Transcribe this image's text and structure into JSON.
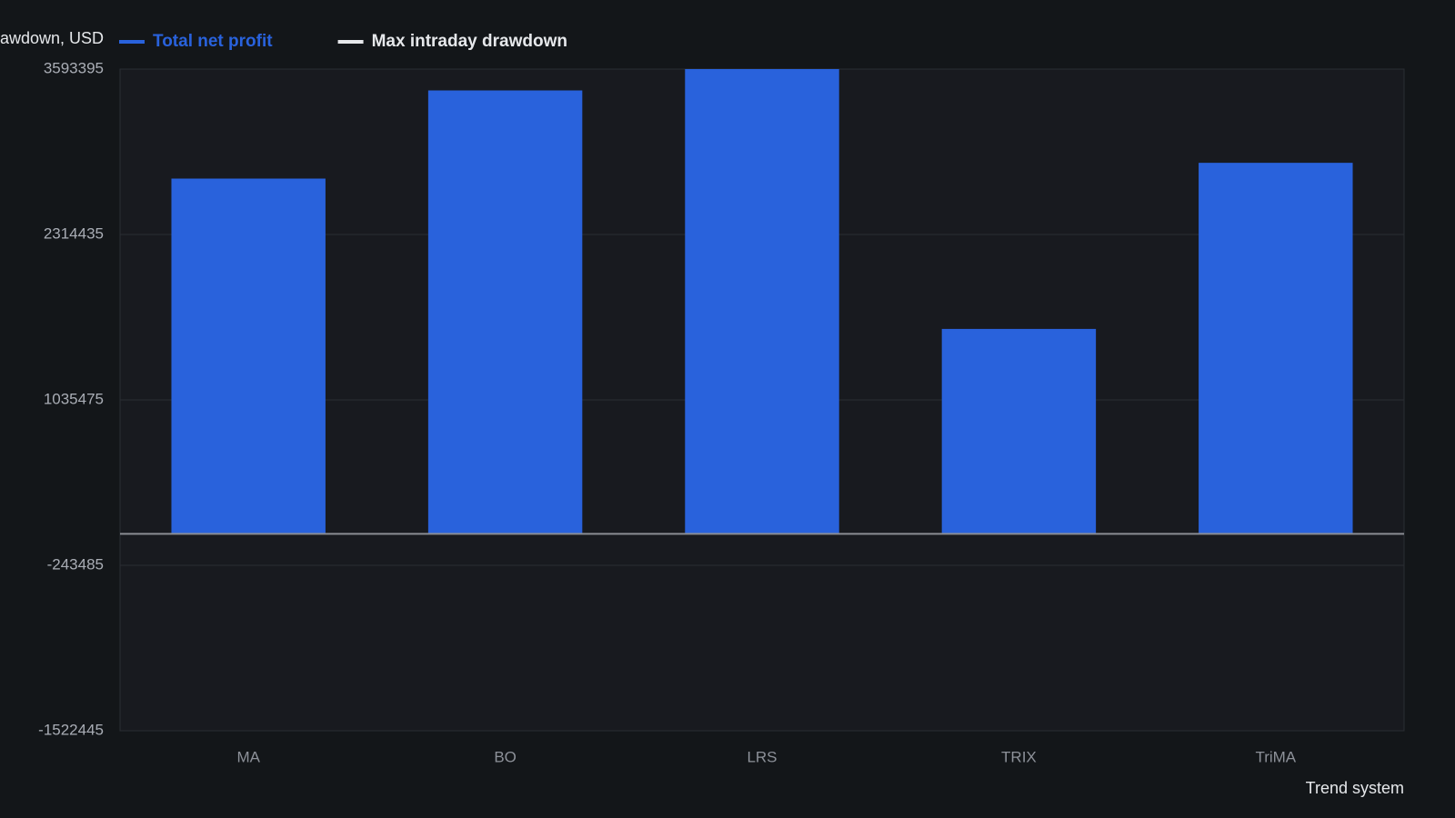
{
  "chart_data": {
    "type": "bar",
    "y_axis_label": "awdown, USD",
    "x_axis_label": "Trend system",
    "categories": [
      "MA",
      "BO",
      "LRS",
      "TRIX",
      "TriMA"
    ],
    "series": [
      {
        "name": "Total net profit",
        "color": "#2962dc",
        "values": [
          2746600,
          3428300,
          3593395,
          1584300,
          2868600
        ]
      },
      {
        "name": "Max intraday drawdown",
        "color": "#e6e8eb",
        "values": [
          null,
          null,
          null,
          null,
          null
        ]
      }
    ],
    "ylim": [
      -1522445,
      3593395
    ],
    "yticks": [
      -1522445,
      -243485,
      1035475,
      2314435,
      3593395
    ],
    "grid": true
  }
}
